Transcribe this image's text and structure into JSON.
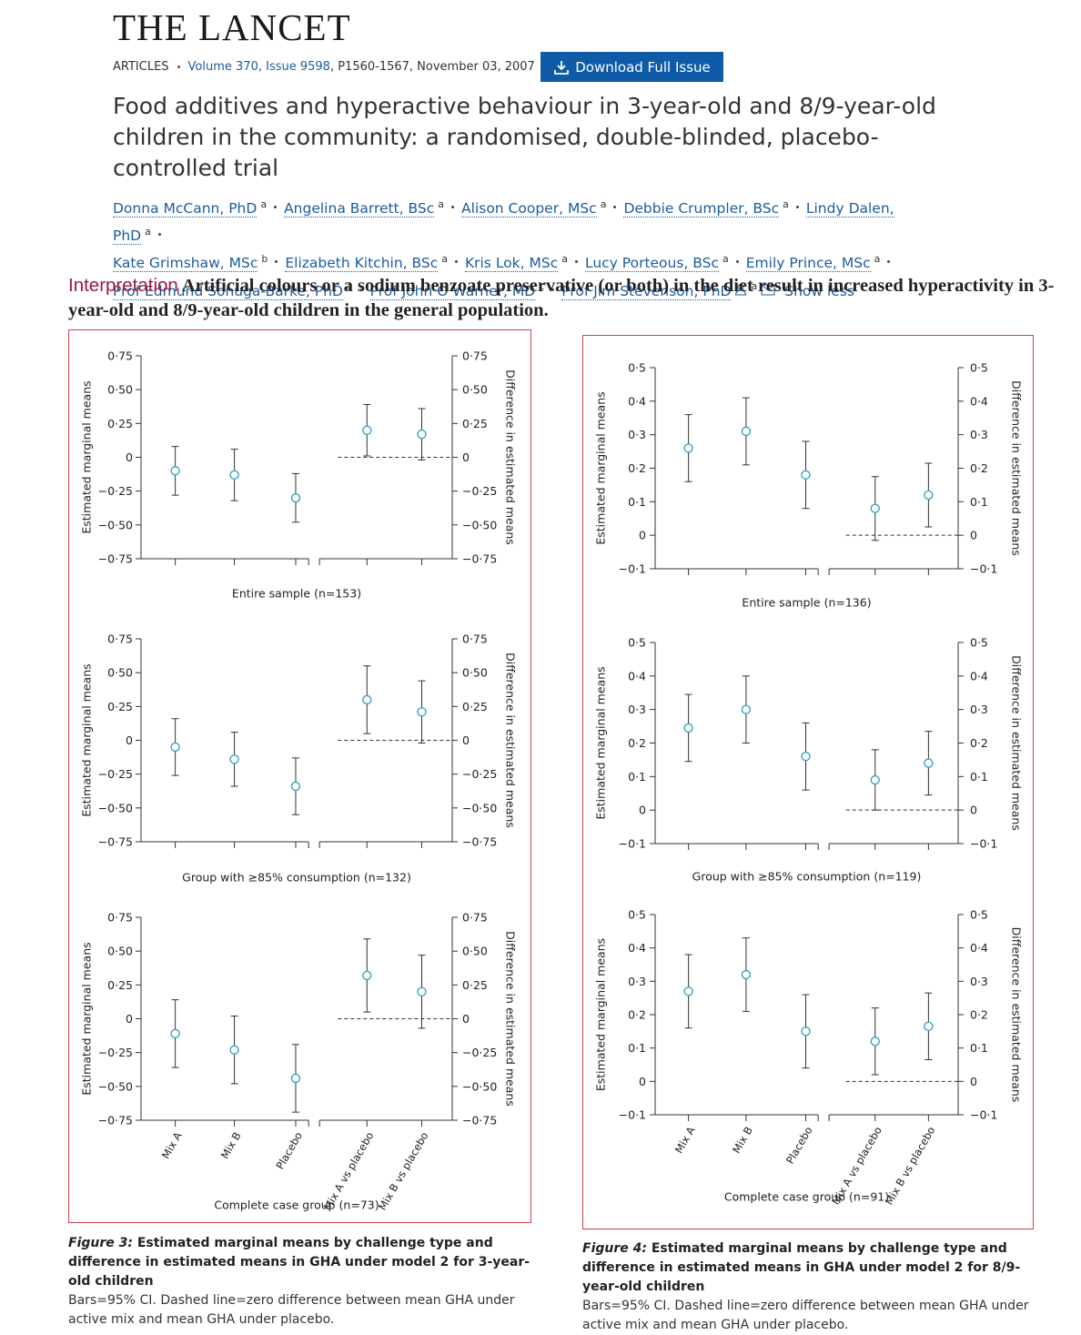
{
  "header": {
    "journal": "THE LANCET",
    "section": "ARTICLES",
    "issue_link": "Volume 370, Issue 9598",
    "citation_rest": ", P1560-1567, November 03, 2007",
    "download_button": "Download Full Issue",
    "title": "Food additives and hyperactive behaviour in 3-year-old and 8/9-year-old children in the community: a randomised, double-blinded, placebo-controlled trial",
    "authors": [
      {
        "name": "Donna McCann, PhD",
        "affiliation": "a"
      },
      {
        "name": "Angelina Barrett, BSc",
        "affiliation": "a"
      },
      {
        "name": "Alison Cooper, MSc",
        "affiliation": "a"
      },
      {
        "name": "Debbie Crumpler, BSc",
        "affiliation": "a"
      },
      {
        "name": "Lindy Dalen, PhD",
        "affiliation": "a"
      },
      {
        "name": "Kate Grimshaw, MSc",
        "affiliation": "b"
      },
      {
        "name": "Elizabeth Kitchin, BSc",
        "affiliation": "a"
      },
      {
        "name": "Kris Lok, MSc",
        "affiliation": "a"
      },
      {
        "name": "Lucy Porteous, BSc",
        "affiliation": "a"
      },
      {
        "name": "Emily Prince, MSc",
        "affiliation": "a"
      },
      {
        "name": "Prof Edmund Sonuga-Barke, PhD",
        "affiliation": "a"
      },
      {
        "name": "Prof John O Warner, MD",
        "affiliation": "c"
      },
      {
        "name": "Prof Jim Stevenson, PhD",
        "affiliation": "a"
      }
    ],
    "show_less": "Show less"
  },
  "interpretation": {
    "label": "Interpretation",
    "text": "Artificial colours or a sodium benzoate preservative (or both) in the diet result in increased hyperactivity in 3-year-old and 8/9-year-old children in the general population."
  },
  "figures": [
    {
      "label": "Figure 3:",
      "title": "Estimated marginal means by challenge type and difference in estimated means in GHA under model 2 for 3-year-old children",
      "note": "Bars=95% CI. Dashed line=zero difference between mean GHA under active mix and mean GHA under placebo."
    },
    {
      "label": "Figure 4:",
      "title": "Estimated marginal means by challenge type and difference in estimated means in GHA under model 2 for 8/9-year-old children",
      "note": "Bars=95% CI. Dashed line=zero difference between mean GHA under active mix and mean GHA under placebo."
    }
  ],
  "chart_data": [
    {
      "type": "errorbar",
      "xlabel": "Entire sample (n=153)",
      "ylabel": "Estimated marginal means",
      "y2label": "Difference in estimated means",
      "categories": [
        null,
        null,
        null,
        null,
        null
      ],
      "ylim": [
        -0.75,
        0.75
      ],
      "yticks": [
        {
          "value": -0.75,
          "label": "−0·75"
        },
        {
          "value": -0.5,
          "label": "−0·50"
        },
        {
          "value": -0.25,
          "label": "−0·25"
        },
        0,
        {
          "value": 0.25,
          "label": "0·25"
        },
        {
          "value": 0.5,
          "label": "0·50"
        },
        {
          "value": 0.75,
          "label": "0·75"
        }
      ],
      "y2lim": [
        -0.75,
        0.75
      ],
      "y2ticks": [
        {
          "value": -0.75,
          "label": "−0·75"
        },
        {
          "value": -0.5,
          "label": "−0·50"
        },
        {
          "value": -0.25,
          "label": "−0·25"
        },
        0,
        {
          "value": 0.25,
          "label": "0·25"
        },
        {
          "value": 0.5,
          "label": "0·50"
        },
        {
          "value": 0.75,
          "label": "0·75"
        }
      ],
      "reference_line": {
        "value": 0,
        "axis": "y2"
      },
      "series": [
        {
          "axis": "y",
          "color": "#3ba3bd",
          "values": [
            -0.1,
            -0.13,
            -0.3,
            null,
            null
          ],
          "errors": [
            0.18,
            0.19,
            0.18,
            null,
            null
          ]
        },
        {
          "axis": "y2",
          "color": "#3ba3bd",
          "values": [
            null,
            null,
            null,
            0.2,
            0.17
          ],
          "errors": [
            null,
            null,
            null,
            0.19,
            0.19
          ]
        }
      ]
    },
    {
      "type": "errorbar",
      "xlabel": "Group with ≥85% consumption (n=132)",
      "ylabel": "Estimated marginal means",
      "y2label": "Difference in estimated means",
      "categories": [
        null,
        null,
        null,
        null,
        null
      ],
      "ylim": [
        -0.75,
        0.75
      ],
      "yticks": [
        {
          "value": -0.75,
          "label": "−0·75"
        },
        {
          "value": -0.5,
          "label": "−0·50"
        },
        {
          "value": -0.25,
          "label": "−0·25"
        },
        0,
        {
          "value": 0.25,
          "label": "0·25"
        },
        {
          "value": 0.5,
          "label": "0·50"
        },
        {
          "value": 0.75,
          "label": "0·75"
        }
      ],
      "y2lim": [
        -0.75,
        0.75
      ],
      "y2ticks": [
        {
          "value": -0.75,
          "label": "−0·75"
        },
        {
          "value": -0.5,
          "label": "−0·50"
        },
        {
          "value": -0.25,
          "label": "−0·25"
        },
        0,
        {
          "value": 0.25,
          "label": "0·25"
        },
        {
          "value": 0.5,
          "label": "0·50"
        },
        {
          "value": 0.75,
          "label": "0·75"
        }
      ],
      "reference_line": {
        "value": 0,
        "axis": "y2"
      },
      "series": [
        {
          "axis": "y",
          "color": "#3ba3bd",
          "values": [
            -0.05,
            -0.14,
            -0.34,
            null,
            null
          ],
          "errors": [
            0.21,
            0.2,
            0.21,
            null,
            null
          ]
        },
        {
          "axis": "y2",
          "color": "#3ba3bd",
          "values": [
            null,
            null,
            null,
            0.3,
            0.21
          ],
          "errors": [
            null,
            null,
            null,
            0.25,
            0.23
          ]
        }
      ]
    },
    {
      "type": "errorbar",
      "xlabel": "Complete case group (n=73)",
      "ylabel": "Estimated marginal means",
      "y2label": "Difference in estimated means",
      "categories": [
        "Mix A",
        "Mix B",
        "Placebo",
        "Mix A vs placebo",
        "Mix B vs placebo"
      ],
      "ylim": [
        -0.75,
        0.75
      ],
      "yticks": [
        {
          "value": -0.75,
          "label": "−0·75"
        },
        {
          "value": -0.5,
          "label": "−0·50"
        },
        {
          "value": -0.25,
          "label": "−0·25"
        },
        0,
        {
          "value": 0.25,
          "label": "0·25"
        },
        {
          "value": 0.5,
          "label": "0·50"
        },
        {
          "value": 0.75,
          "label": "0·75"
        }
      ],
      "y2lim": [
        -0.75,
        0.75
      ],
      "y2ticks": [
        {
          "value": -0.75,
          "label": "−0·75"
        },
        {
          "value": -0.5,
          "label": "−0·50"
        },
        {
          "value": -0.25,
          "label": "−0·25"
        },
        0,
        {
          "value": 0.25,
          "label": "0·25"
        },
        {
          "value": 0.5,
          "label": "0·50"
        },
        {
          "value": 0.75,
          "label": "0·75"
        }
      ],
      "reference_line": {
        "value": 0,
        "axis": "y2"
      },
      "series": [
        {
          "axis": "y",
          "color": "#3ba3bd",
          "values": [
            -0.11,
            -0.23,
            -0.44,
            null,
            null
          ],
          "errors": [
            0.25,
            0.25,
            0.25,
            null,
            null
          ]
        },
        {
          "axis": "y2",
          "color": "#3ba3bd",
          "values": [
            null,
            null,
            null,
            0.32,
            0.2
          ],
          "errors": [
            null,
            null,
            null,
            0.27,
            0.27
          ]
        }
      ]
    },
    {
      "type": "errorbar",
      "xlabel": "Entire sample (n=136)",
      "ylabel": "Estimated marginal means",
      "y2label": "Difference in estimated means",
      "categories": [
        null,
        null,
        null,
        null,
        null
      ],
      "ylim": [
        -0.1,
        0.5
      ],
      "yticks": [
        {
          "value": -0.1,
          "label": "−0·1"
        },
        0,
        {
          "value": 0.1,
          "label": "0·1"
        },
        {
          "value": 0.2,
          "label": "0·2"
        },
        {
          "value": 0.3,
          "label": "0·3"
        },
        {
          "value": 0.4,
          "label": "0·4"
        },
        {
          "value": 0.5,
          "label": "0·5"
        }
      ],
      "y2lim": [
        -0.1,
        0.5
      ],
      "y2ticks": [
        {
          "value": -0.1,
          "label": "−0·1"
        },
        0,
        {
          "value": 0.1,
          "label": "0·1"
        },
        {
          "value": 0.2,
          "label": "0·2"
        },
        {
          "value": 0.3,
          "label": "0·3"
        },
        {
          "value": 0.4,
          "label": "0·4"
        },
        {
          "value": 0.5,
          "label": "0·5"
        }
      ],
      "reference_line": {
        "value": 0,
        "axis": "y2"
      },
      "series": [
        {
          "axis": "y",
          "color": "#3ba3bd",
          "values": [
            0.26,
            0.31,
            0.18,
            null,
            null
          ],
          "errors": [
            0.1,
            0.1,
            0.1,
            null,
            null
          ]
        },
        {
          "axis": "y2",
          "color": "#3ba3bd",
          "values": [
            null,
            null,
            null,
            0.08,
            0.12
          ],
          "errors": [
            null,
            null,
            null,
            0.095,
            0.095
          ]
        }
      ]
    },
    {
      "type": "errorbar",
      "xlabel": "Group with ≥85% consumption (n=119)",
      "ylabel": "Estimated marginal means",
      "y2label": "Difference in estimated means",
      "categories": [
        null,
        null,
        null,
        null,
        null
      ],
      "ylim": [
        -0.1,
        0.5
      ],
      "yticks": [
        {
          "value": -0.1,
          "label": "−0·1"
        },
        0,
        {
          "value": 0.1,
          "label": "0·1"
        },
        {
          "value": 0.2,
          "label": "0·2"
        },
        {
          "value": 0.3,
          "label": "0·3"
        },
        {
          "value": 0.4,
          "label": "0·4"
        },
        {
          "value": 0.5,
          "label": "0·5"
        }
      ],
      "y2lim": [
        -0.1,
        0.5
      ],
      "y2ticks": [
        {
          "value": -0.1,
          "label": "−0·1"
        },
        0,
        {
          "value": 0.1,
          "label": "0·1"
        },
        {
          "value": 0.2,
          "label": "0·2"
        },
        {
          "value": 0.3,
          "label": "0·3"
        },
        {
          "value": 0.4,
          "label": "0·4"
        },
        {
          "value": 0.5,
          "label": "0·5"
        }
      ],
      "reference_line": {
        "value": 0,
        "axis": "y2"
      },
      "series": [
        {
          "axis": "y",
          "color": "#3ba3bd",
          "values": [
            0.245,
            0.3,
            0.16,
            null,
            null
          ],
          "errors": [
            0.1,
            0.1,
            0.1,
            null,
            null
          ]
        },
        {
          "axis": "y2",
          "color": "#3ba3bd",
          "values": [
            null,
            null,
            null,
            0.09,
            0.14
          ],
          "errors": [
            null,
            null,
            null,
            0.09,
            0.095
          ]
        }
      ]
    },
    {
      "type": "errorbar",
      "xlabel": "Complete case group (n=91)",
      "ylabel": "Estimated marginal means",
      "y2label": "Difference in estimated means",
      "categories": [
        "Mix A",
        "Mix B",
        "Placebo",
        "Mix A vs placebo",
        "Mix B vs placebo"
      ],
      "ylim": [
        -0.1,
        0.5
      ],
      "yticks": [
        {
          "value": -0.1,
          "label": "−0·1"
        },
        0,
        {
          "value": 0.1,
          "label": "0·1"
        },
        {
          "value": 0.2,
          "label": "0·2"
        },
        {
          "value": 0.3,
          "label": "0·3"
        },
        {
          "value": 0.4,
          "label": "0·4"
        },
        {
          "value": 0.5,
          "label": "0·5"
        }
      ],
      "y2lim": [
        -0.1,
        0.5
      ],
      "y2ticks": [
        {
          "value": -0.1,
          "label": "−0·1"
        },
        0,
        {
          "value": 0.1,
          "label": "0·1"
        },
        {
          "value": 0.2,
          "label": "0·2"
        },
        {
          "value": 0.3,
          "label": "0·3"
        },
        {
          "value": 0.4,
          "label": "0·4"
        },
        {
          "value": 0.5,
          "label": "0·5"
        }
      ],
      "reference_line": {
        "value": 0,
        "axis": "y2"
      },
      "series": [
        {
          "axis": "y",
          "color": "#3ba3bd",
          "values": [
            0.27,
            0.32,
            0.15,
            null,
            null
          ],
          "errors": [
            0.11,
            0.11,
            0.11,
            null,
            null
          ]
        },
        {
          "axis": "y2",
          "color": "#3ba3bd",
          "values": [
            null,
            null,
            null,
            0.12,
            0.165
          ],
          "errors": [
            null,
            null,
            null,
            0.1,
            0.1
          ]
        }
      ]
    }
  ]
}
